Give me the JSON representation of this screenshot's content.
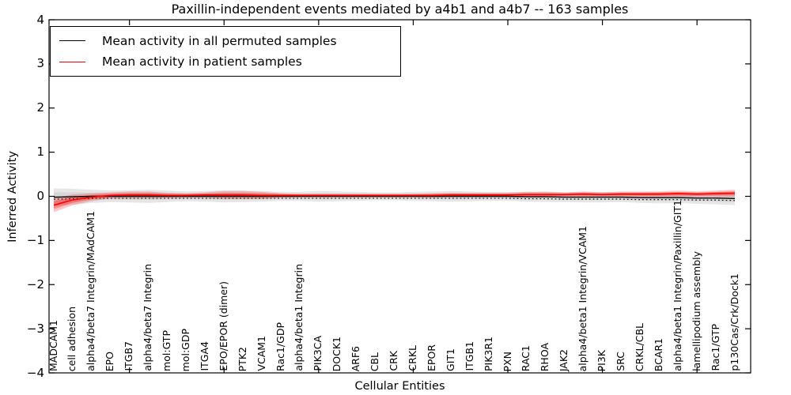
{
  "chart_data": {
    "type": "line",
    "title": "Paxillin-independent events mediated by a4b1 and a4b7 -- 163 samples",
    "xlabel": "Cellular Entities",
    "ylabel": "Inferred Activity",
    "ylim": [
      -4,
      4
    ],
    "yticks": [
      -4,
      -3,
      -2,
      -1,
      0,
      1,
      2,
      3,
      4
    ],
    "xticks_every": 5,
    "grid": false,
    "legend": {
      "position": "upper-left",
      "entries": [
        {
          "label": "Mean activity in all permuted samples",
          "color": "#000000"
        },
        {
          "label": "Mean activity in patient samples",
          "color": "#ff0000"
        }
      ]
    },
    "categories": [
      "MADCAM1",
      "cell adhesion",
      "alpha4/beta7 Integrin/MAdCAM1",
      "EPO",
      "ITGB7",
      "alpha4/beta7 Integrin",
      "mol:GTP",
      "mol:GDP",
      "ITGA4",
      "EPO/EPOR (dimer)",
      "PTK2",
      "VCAM1",
      "Rac1/GDP",
      "alpha4/beta1 Integrin",
      "PIK3CA",
      "DOCK1",
      "ARF6",
      "CBL",
      "CRK",
      "CRKL",
      "EPOR",
      "GIT1",
      "ITGB1",
      "PIK3R1",
      "PXN",
      "RAC1",
      "RHOA",
      "JAK2",
      "alpha4/beta1 Integrin/VCAM1",
      "PI3K",
      "SRC",
      "CRKL/CBL",
      "BCAR1",
      "alpha4/beta1 Integrin/Paxillin/GIT1",
      "lamellipodium assembly",
      "Rac1/GTP",
      "p130Cas/Crk/Dock1"
    ],
    "series": [
      {
        "name": "Mean activity in all permuted samples",
        "color": "#000000",
        "values": [
          -0.02,
          -0.01,
          0,
          0,
          0,
          0,
          0,
          0,
          0,
          0,
          0,
          0,
          0,
          0,
          0,
          0,
          0,
          0,
          0,
          0,
          0,
          0,
          0,
          0,
          0,
          -0.01,
          -0.01,
          -0.02,
          -0.02,
          -0.02,
          -0.02,
          -0.03,
          -0.03,
          -0.03,
          -0.04,
          -0.04,
          -0.05
        ]
      },
      {
        "name": "Mean activity in patient samples",
        "color": "#ff0000",
        "values": [
          -0.2,
          -0.08,
          -0.02,
          0.02,
          0.03,
          0.03,
          0.02,
          0.02,
          0.03,
          0.03,
          0.03,
          0.02,
          0.02,
          0.02,
          0.02,
          0.02,
          0.02,
          0.02,
          0.02,
          0.02,
          0.02,
          0.03,
          0.03,
          0.03,
          0.03,
          0.04,
          0.04,
          0.04,
          0.05,
          0.04,
          0.05,
          0.05,
          0.05,
          0.06,
          0.05,
          0.06,
          0.07
        ]
      }
    ],
    "bands": [
      {
        "name": "permuted-samples-spread",
        "series": 0,
        "color": "#808080",
        "halfwidths": [
          0.2,
          0.18,
          0.15,
          0.13,
          0.14,
          0.15,
          0.13,
          0.11,
          0.12,
          0.14,
          0.13,
          0.12,
          0.1,
          0.1,
          0.12,
          0.11,
          0.1,
          0.09,
          0.09,
          0.1,
          0.11,
          0.12,
          0.11,
          0.1,
          0.1,
          0.11,
          0.12,
          0.11,
          0.12,
          0.12,
          0.11,
          0.12,
          0.13,
          0.12,
          0.13,
          0.14,
          0.15
        ]
      },
      {
        "name": "patient-samples-spread",
        "series": 1,
        "color": "#ff0000",
        "halfwidths": [
          0.16,
          0.12,
          0.09,
          0.07,
          0.08,
          0.08,
          0.06,
          0.05,
          0.06,
          0.09,
          0.09,
          0.08,
          0.05,
          0.04,
          0.04,
          0.04,
          0.04,
          0.04,
          0.04,
          0.04,
          0.05,
          0.05,
          0.05,
          0.05,
          0.05,
          0.06,
          0.06,
          0.05,
          0.06,
          0.05,
          0.06,
          0.06,
          0.06,
          0.07,
          0.06,
          0.07,
          0.08
        ]
      }
    ]
  }
}
